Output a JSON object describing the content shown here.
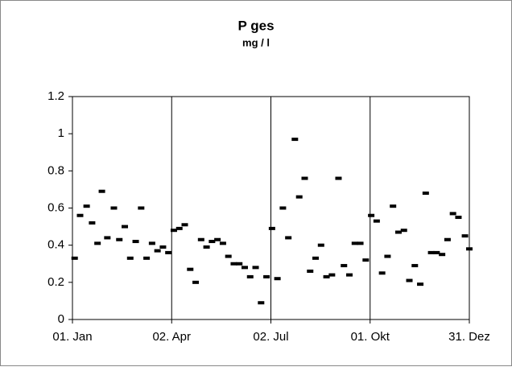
{
  "chart_data": {
    "type": "scatter",
    "title": "P ges",
    "subtitle": "mg / l",
    "x": [
      2,
      7,
      13,
      18,
      23,
      27,
      32,
      38,
      43,
      48,
      53,
      58,
      63,
      68,
      73,
      78,
      83,
      88,
      93,
      98,
      103,
      108,
      113,
      118,
      123,
      128,
      133,
      138,
      143,
      148,
      153,
      158,
      163,
      168,
      173,
      178,
      183,
      188,
      193,
      198,
      204,
      208,
      213,
      218,
      223,
      228,
      233,
      238,
      244,
      249,
      254,
      259,
      264,
      269,
      274,
      279,
      284,
      289,
      294,
      299,
      304,
      309,
      314,
      319,
      324,
      329,
      334,
      339,
      344,
      349,
      354,
      360,
      364
    ],
    "values": [
      0.33,
      0.56,
      0.61,
      0.52,
      0.41,
      0.69,
      0.44,
      0.6,
      0.43,
      0.5,
      0.33,
      0.42,
      0.6,
      0.33,
      0.41,
      0.37,
      0.39,
      0.36,
      0.48,
      0.49,
      0.51,
      0.27,
      0.2,
      0.43,
      0.39,
      0.42,
      0.43,
      0.41,
      0.34,
      0.3,
      0.3,
      0.28,
      0.23,
      0.28,
      0.09,
      0.23,
      0.49,
      0.22,
      0.6,
      0.44,
      0.97,
      0.66,
      0.76,
      0.26,
      0.33,
      0.4,
      0.23,
      0.24,
      0.76,
      0.29,
      0.24,
      0.41,
      0.41,
      0.32,
      0.56,
      0.53,
      0.25,
      0.34,
      0.61,
      0.47,
      0.48,
      0.21,
      0.29,
      0.19,
      0.68,
      0.36,
      0.36,
      0.35,
      0.43,
      0.57,
      0.55,
      0.45,
      0.38
    ],
    "color": "#000000",
    "xlim": [
      0,
      364
    ],
    "xticks": [
      {
        "value": 0,
        "label": "01. Jan"
      },
      {
        "value": 91,
        "label": "02. Apr"
      },
      {
        "value": 182,
        "label": "02. Jul"
      },
      {
        "value": 273,
        "label": "01. Okt"
      },
      {
        "value": 364,
        "label": "31. Dez"
      }
    ],
    "ylim": [
      0,
      1.2
    ],
    "yticks": [
      0,
      0.2,
      0.4,
      0.6,
      0.8,
      1,
      1.2
    ],
    "xgrid": true,
    "ygrid": false
  }
}
